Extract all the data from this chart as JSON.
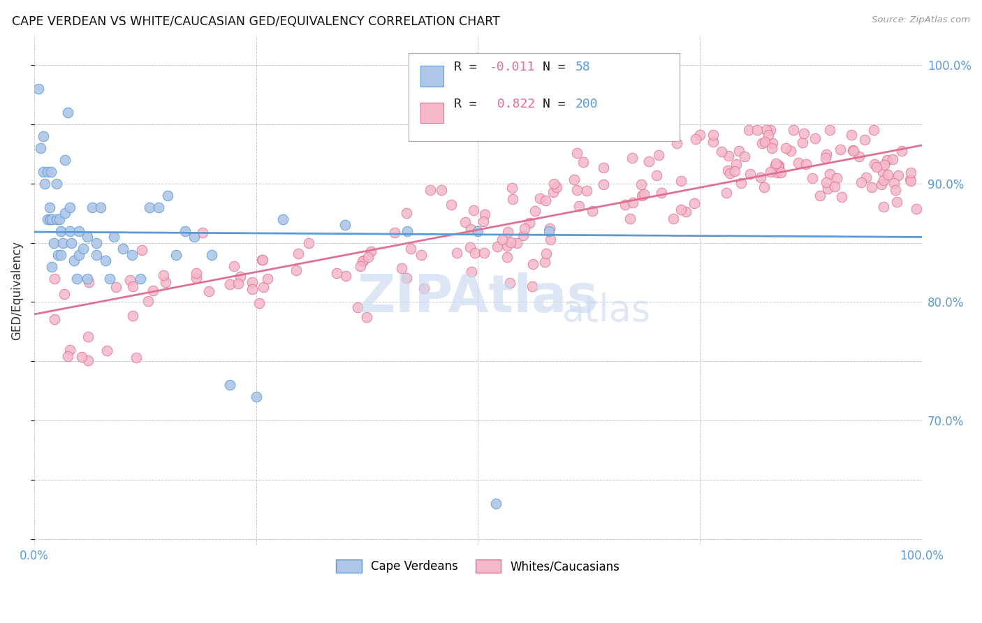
{
  "title": "CAPE VERDEAN VS WHITE/CAUCASIAN GED/EQUIVALENCY CORRELATION CHART",
  "source": "Source: ZipAtlas.com",
  "ylabel": "GED/Equivalency",
  "blue_color": "#5b9bd5",
  "blue_fill": "#aec6e8",
  "pink_color": "#e07090",
  "pink_fill": "#f4b8c8",
  "watermark_color": "#ccd9f0",
  "r_blue": -0.011,
  "n_blue": 58,
  "r_pink": 0.822,
  "n_pink": 200,
  "xlim": [
    0.0,
    1.0
  ],
  "ylim": [
    0.595,
    1.025
  ],
  "yticks": [
    0.7,
    0.8,
    0.9,
    1.0
  ],
  "ytick_labels": [
    "70.0%",
    "80.0%",
    "90.0%",
    "100.0%"
  ],
  "legend_labels": [
    "Cape Verdeans",
    "Whites/Caucasians"
  ],
  "blue_x": [
    0.005,
    0.007,
    0.01,
    0.01,
    0.012,
    0.015,
    0.015,
    0.017,
    0.018,
    0.019,
    0.02,
    0.02,
    0.022,
    0.025,
    0.025,
    0.027,
    0.028,
    0.03,
    0.03,
    0.032,
    0.035,
    0.035,
    0.038,
    0.04,
    0.04,
    0.042,
    0.045,
    0.048,
    0.05,
    0.05,
    0.055,
    0.06,
    0.06,
    0.065,
    0.07,
    0.07,
    0.075,
    0.08,
    0.085,
    0.09,
    0.1,
    0.11,
    0.12,
    0.13,
    0.14,
    0.15,
    0.16,
    0.17,
    0.18,
    0.2,
    0.22,
    0.25,
    0.28,
    0.35,
    0.42,
    0.5,
    0.52,
    0.58
  ],
  "blue_y": [
    0.845,
    0.855,
    0.84,
    0.86,
    0.87,
    0.855,
    0.875,
    0.845,
    0.86,
    0.875,
    0.84,
    0.86,
    0.875,
    0.84,
    0.855,
    0.865,
    0.87,
    0.84,
    0.855,
    0.865,
    0.855,
    0.865,
    0.875,
    0.85,
    0.86,
    0.87,
    0.865,
    0.855,
    0.86,
    0.875,
    0.87,
    0.855,
    0.87,
    0.865,
    0.87,
    0.88,
    0.865,
    0.87,
    0.875,
    0.87,
    0.87,
    0.87,
    0.87,
    0.87,
    0.875,
    0.87,
    0.855,
    0.87,
    0.855,
    0.865,
    0.855,
    0.855,
    0.865,
    0.87,
    0.87,
    0.87,
    0.855,
    0.87
  ],
  "blue_y_scatter": [
    0.98,
    0.93,
    0.91,
    0.94,
    0.9,
    0.87,
    0.91,
    0.88,
    0.87,
    0.91,
    0.83,
    0.87,
    0.85,
    0.9,
    0.87,
    0.84,
    0.87,
    0.84,
    0.86,
    0.85,
    0.875,
    0.92,
    0.96,
    0.86,
    0.88,
    0.85,
    0.835,
    0.82,
    0.86,
    0.84,
    0.845,
    0.82,
    0.855,
    0.88,
    0.84,
    0.85,
    0.88,
    0.835,
    0.82,
    0.855,
    0.845,
    0.84,
    0.82,
    0.88,
    0.88,
    0.89,
    0.84,
    0.86,
    0.855,
    0.84,
    0.73,
    0.72,
    0.87,
    0.865,
    0.86,
    0.86,
    0.63,
    0.86
  ]
}
